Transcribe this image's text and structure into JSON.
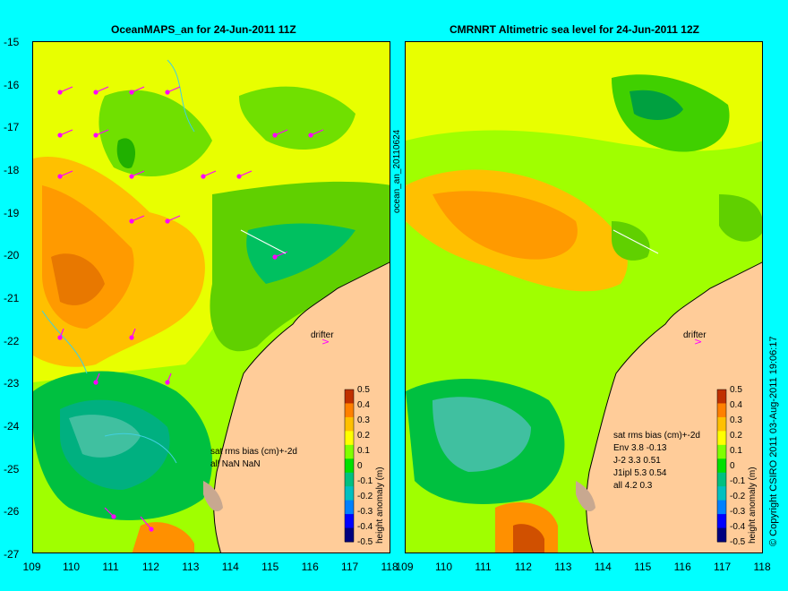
{
  "panels": [
    {
      "id": "left",
      "title": "OceanMAPS_an for 24-Jun-2011 11Z",
      "stats_header": "sat rms bias (cm)+-2d",
      "stats_lines": [
        "all NaN NaN"
      ],
      "drifter_label": "drifter",
      "colorbar_label": "height anomaly (m)"
    },
    {
      "id": "right",
      "title": "CMRNRT Altimetric sea level  for 24-Jun-2011 12Z",
      "stats_header": "sat rms bias (cm)+-2d",
      "stats_lines": [
        "Env   3.8 -0.13",
        "J-2   3.3 0.51",
        "J1ipl 5.3 0.54",
        "all 4.2 0.3"
      ],
      "drifter_label": "drifter",
      "colorbar_label": "height anomaly (m)"
    }
  ],
  "middle_label": "ocean_an_20110624",
  "footer_label": "© Copyright CSIRO 2011    03-Aug-2011 19:06:17",
  "y_axis_ticks": [
    "-15",
    "-16",
    "-17",
    "-18",
    "-19",
    "-20",
    "-21",
    "-22",
    "-23",
    "-24",
    "-25",
    "-26",
    "-27"
  ],
  "x_axis_ticks_left": [
    "109",
    "110",
    "111",
    "112",
    "113",
    "114",
    "115",
    "116",
    "117",
    "118"
  ],
  "x_axis_ticks_right": [
    "109",
    "110",
    "111",
    "112",
    "113",
    "114",
    "115",
    "116",
    "117",
    "118"
  ],
  "colorbar_ticks": [
    "0.5",
    "0.4",
    "0.3",
    "0.2",
    "0.1",
    "0",
    "-0.1",
    "-0.2",
    "-0.3",
    "-0.4",
    "-0.5"
  ],
  "map_data": {
    "lon_range": [
      109,
      118
    ],
    "lat_range": [
      -27,
      -15
    ],
    "land_color": "#ffcc99",
    "colorbar_colors": [
      "#00007f",
      "#0000ff",
      "#0080ff",
      "#00c0c0",
      "#00c080",
      "#00e000",
      "#80ff00",
      "#ffff00",
      "#ffc000",
      "#ff8000",
      "#c03000"
    ]
  }
}
